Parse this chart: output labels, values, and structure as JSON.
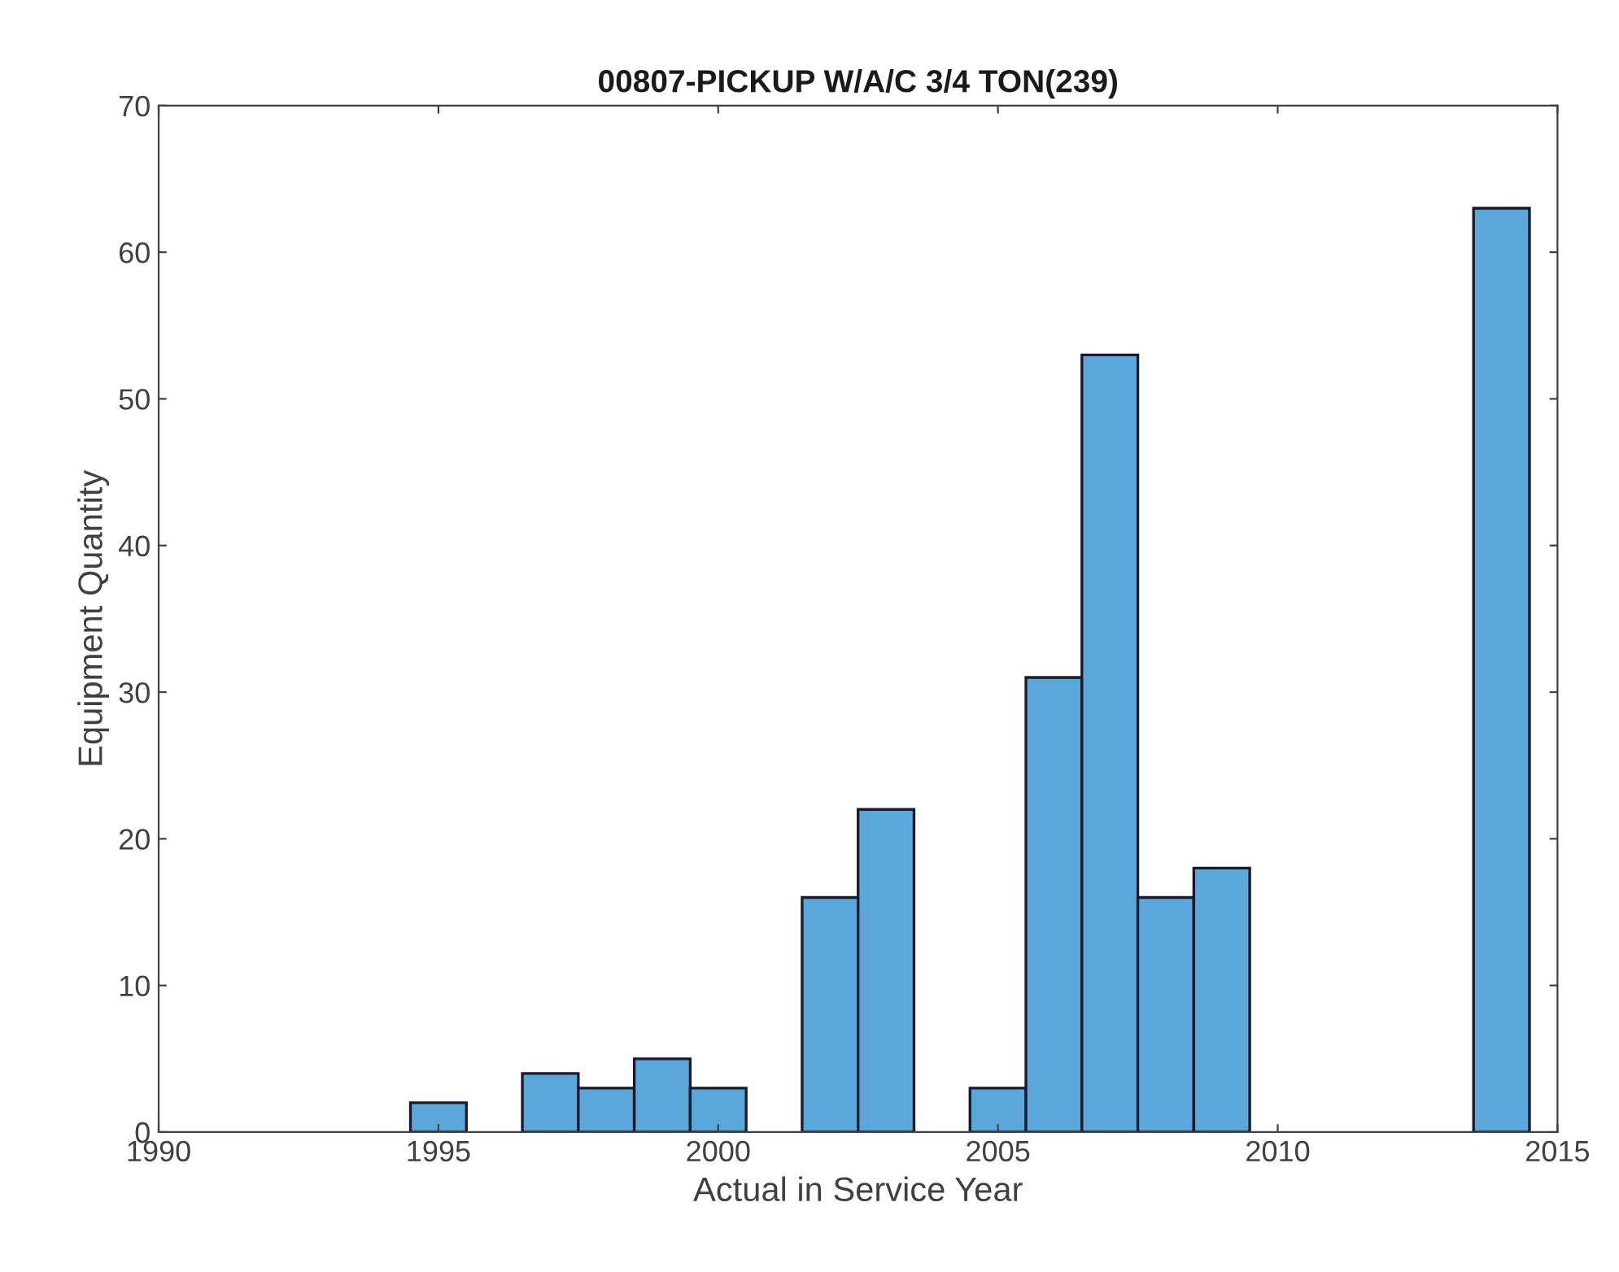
{
  "chart_data": {
    "type": "histogram",
    "title": "00807-PICKUP W/A/C 3/4 TON(239)",
    "xlabel": "Actual in Service Year",
    "ylabel": "Equipment Quantity",
    "bins": [
      1994.5,
      1995.5,
      1996.5,
      1997.5,
      1998.5,
      1999.5,
      2000.5,
      2001.5,
      2002.5,
      2003.5,
      2004.5,
      2005.5,
      2006.5,
      2007.5,
      2008.5,
      2009.5,
      2010.5,
      2011.5,
      2012.5,
      2013.5,
      2014.5
    ],
    "values": [
      2,
      0,
      4,
      3,
      5,
      3,
      0,
      16,
      22,
      0,
      3,
      31,
      53,
      16,
      18,
      0,
      0,
      0,
      0,
      63
    ],
    "color": "#5ca7d9",
    "xlim": [
      1990,
      2015
    ],
    "xticks": [
      1990,
      1995,
      2000,
      2005,
      2010,
      2015
    ],
    "ylim": [
      0,
      70
    ],
    "yticks": [
      0,
      10,
      20,
      30,
      40,
      50,
      60,
      70
    ],
    "grid": false
  }
}
